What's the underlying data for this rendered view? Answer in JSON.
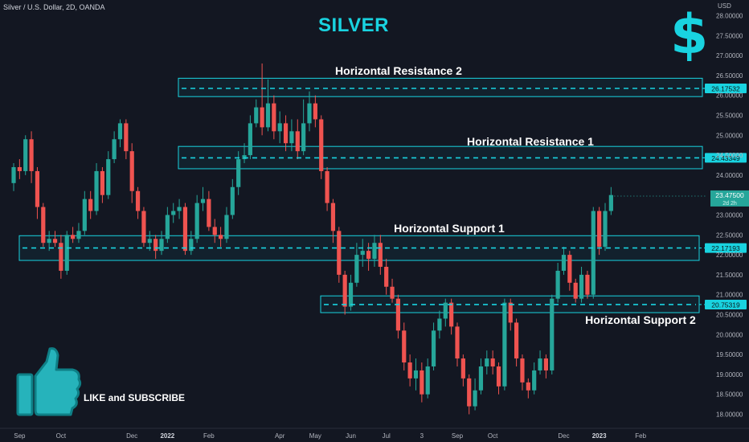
{
  "header": {
    "symbol": "Silver / U.S. Dollar, 2D, OANDA",
    "title": "SILVER",
    "currency": "USD",
    "dollar_glyph": "$"
  },
  "footer": {
    "cta": "LIKE and SUBSCRIBE",
    "thumb_icon": "thumbs-up-icon"
  },
  "colors": {
    "background": "#131722",
    "up": "#26a69a",
    "down": "#ef5350",
    "accent": "#19d3e0",
    "axis_text": "#b2b5be"
  },
  "chart_data": {
    "type": "candlestick",
    "title": "SILVER",
    "price_axis": {
      "ticks": [
        "28.00000",
        "27.50000",
        "27.00000",
        "26.50000",
        "26.00000",
        "25.50000",
        "25.00000",
        "24.50000",
        "24.00000",
        "23.50000",
        "23.00000",
        "22.50000",
        "22.00000",
        "21.50000",
        "21.00000",
        "20.50000",
        "20.00000",
        "19.50000",
        "19.00000",
        "18.50000",
        "18.00000"
      ],
      "ylim": [
        17.8,
        28.1
      ]
    },
    "time_axis": {
      "labels": [
        {
          "text": "Sep",
          "i": 1
        },
        {
          "text": "Oct",
          "i": 8
        },
        {
          "text": "Dec",
          "i": 20
        },
        {
          "text": "2022",
          "i": 26
        },
        {
          "text": "Feb",
          "i": 33
        },
        {
          "text": "Apr",
          "i": 45
        },
        {
          "text": "May",
          "i": 51
        },
        {
          "text": "Jun",
          "i": 57
        },
        {
          "text": "Jul",
          "i": 63
        },
        {
          "text": "3",
          "i": 69
        },
        {
          "text": "Sep",
          "i": 75
        },
        {
          "text": "Oct",
          "i": 81
        },
        {
          "text": "Dec",
          "i": 93
        },
        {
          "text": "2023",
          "i": 99
        },
        {
          "text": "Feb",
          "i": 106
        }
      ],
      "bold": [
        "2022",
        "2023"
      ]
    },
    "candles": [
      [
        23.8,
        24.2,
        24.3,
        23.6
      ],
      [
        24.2,
        24.1,
        24.4,
        23.9
      ],
      [
        24.1,
        24.9,
        25.0,
        24.0
      ],
      [
        24.9,
        24.1,
        25.1,
        23.8
      ],
      [
        24.1,
        23.2,
        24.2,
        22.9
      ],
      [
        23.2,
        22.3,
        23.3,
        22.2
      ],
      [
        22.3,
        22.4,
        22.6,
        22.1
      ],
      [
        22.4,
        22.3,
        22.6,
        22.2
      ],
      [
        22.3,
        21.6,
        22.5,
        21.4
      ],
      [
        21.6,
        22.5,
        22.6,
        21.5
      ],
      [
        22.5,
        22.4,
        22.7,
        22.3
      ],
      [
        22.4,
        22.6,
        22.8,
        22.3
      ],
      [
        22.6,
        23.4,
        23.6,
        22.5
      ],
      [
        23.4,
        23.1,
        23.6,
        22.9
      ],
      [
        23.1,
        24.1,
        24.3,
        23.0
      ],
      [
        24.1,
        23.5,
        24.2,
        23.3
      ],
      [
        23.5,
        24.4,
        24.6,
        23.4
      ],
      [
        24.4,
        24.9,
        25.1,
        24.3
      ],
      [
        24.9,
        25.3,
        25.4,
        24.7
      ],
      [
        25.3,
        24.6,
        25.4,
        24.4
      ],
      [
        24.6,
        23.6,
        24.8,
        23.3
      ],
      [
        23.6,
        23.1,
        23.7,
        22.9
      ],
      [
        23.1,
        22.3,
        23.2,
        22.2
      ],
      [
        22.3,
        22.4,
        22.6,
        22.1
      ],
      [
        22.4,
        22.1,
        22.5,
        21.9
      ],
      [
        22.1,
        22.4,
        22.6,
        22.0
      ],
      [
        22.4,
        23.0,
        23.2,
        22.3
      ],
      [
        23.0,
        23.1,
        23.3,
        22.8
      ],
      [
        23.1,
        23.2,
        23.4,
        22.9
      ],
      [
        23.2,
        22.1,
        23.3,
        22.0
      ],
      [
        22.1,
        22.4,
        22.6,
        22.0
      ],
      [
        22.4,
        23.3,
        23.5,
        22.3
      ],
      [
        23.3,
        23.4,
        23.7,
        23.1
      ],
      [
        23.4,
        22.7,
        23.6,
        22.6
      ],
      [
        22.7,
        22.5,
        22.9,
        22.3
      ],
      [
        22.5,
        22.4,
        22.7,
        22.2
      ],
      [
        22.4,
        23.0,
        23.2,
        22.3
      ],
      [
        23.0,
        23.7,
        23.9,
        22.9
      ],
      [
        23.7,
        24.4,
        24.6,
        23.5
      ],
      [
        24.4,
        24.5,
        24.8,
        24.3
      ],
      [
        24.5,
        25.3,
        25.5,
        24.4
      ],
      [
        25.3,
        25.7,
        25.9,
        25.2
      ],
      [
        25.7,
        25.2,
        26.8,
        25.0
      ],
      [
        25.2,
        25.8,
        26.4,
        25.1
      ],
      [
        25.8,
        25.1,
        26.0,
        24.9
      ],
      [
        25.1,
        25.3,
        25.6,
        24.8
      ],
      [
        25.3,
        24.8,
        25.5,
        24.6
      ],
      [
        24.8,
        25.1,
        25.4,
        24.6
      ],
      [
        25.1,
        24.6,
        25.4,
        24.4
      ],
      [
        24.6,
        25.3,
        25.9,
        24.5
      ],
      [
        25.3,
        25.8,
        26.1,
        25.1
      ],
      [
        25.8,
        25.4,
        26.0,
        25.2
      ],
      [
        25.4,
        24.1,
        25.5,
        23.9
      ],
      [
        24.1,
        23.3,
        24.2,
        23.1
      ],
      [
        23.3,
        22.6,
        23.4,
        22.3
      ],
      [
        22.6,
        21.5,
        22.7,
        21.3
      ],
      [
        21.5,
        20.7,
        21.6,
        20.5
      ],
      [
        20.7,
        21.3,
        21.5,
        20.6
      ],
      [
        21.3,
        22.0,
        22.3,
        21.2
      ],
      [
        22.0,
        22.1,
        22.4,
        21.7
      ],
      [
        22.1,
        21.9,
        22.3,
        21.6
      ],
      [
        21.9,
        22.3,
        22.5,
        21.7
      ],
      [
        22.3,
        21.7,
        22.5,
        21.5
      ],
      [
        21.7,
        21.2,
        21.9,
        21.0
      ],
      [
        21.2,
        20.9,
        21.4,
        20.8
      ],
      [
        20.9,
        20.1,
        21.0,
        19.9
      ],
      [
        20.1,
        19.3,
        20.3,
        19.1
      ],
      [
        19.3,
        18.9,
        19.5,
        18.7
      ],
      [
        18.9,
        19.1,
        19.4,
        18.6
      ],
      [
        19.1,
        18.5,
        19.3,
        18.3
      ],
      [
        18.5,
        19.2,
        19.4,
        18.4
      ],
      [
        19.2,
        20.1,
        20.3,
        19.1
      ],
      [
        20.1,
        20.4,
        20.6,
        19.9
      ],
      [
        20.4,
        20.8,
        20.9,
        20.2
      ],
      [
        20.8,
        20.2,
        20.9,
        20.0
      ],
      [
        20.2,
        19.4,
        20.3,
        19.2
      ],
      [
        19.4,
        18.9,
        19.5,
        18.7
      ],
      [
        18.9,
        18.2,
        19.0,
        18.0
      ],
      [
        18.2,
        18.6,
        18.9,
        18.1
      ],
      [
        18.6,
        19.2,
        19.4,
        18.5
      ],
      [
        19.2,
        19.4,
        19.6,
        19.0
      ],
      [
        19.4,
        19.2,
        19.6,
        19.0
      ],
      [
        19.2,
        18.7,
        19.3,
        18.5
      ],
      [
        18.7,
        20.8,
        20.9,
        18.6
      ],
      [
        20.8,
        20.3,
        20.9,
        20.1
      ],
      [
        20.3,
        19.4,
        20.4,
        19.2
      ],
      [
        19.4,
        18.8,
        19.5,
        18.6
      ],
      [
        18.8,
        18.6,
        18.9,
        18.4
      ],
      [
        18.6,
        19.1,
        19.3,
        18.5
      ],
      [
        19.1,
        19.4,
        19.6,
        19.0
      ],
      [
        19.4,
        19.1,
        19.5,
        18.9
      ],
      [
        19.1,
        20.9,
        21.0,
        19.0
      ],
      [
        20.9,
        21.6,
        21.8,
        20.8
      ],
      [
        21.6,
        22.0,
        22.2,
        21.5
      ],
      [
        22.0,
        21.3,
        22.1,
        21.1
      ],
      [
        21.3,
        20.9,
        21.4,
        20.8
      ],
      [
        20.9,
        21.5,
        21.7,
        20.8
      ],
      [
        21.5,
        21.0,
        21.6,
        20.9
      ],
      [
        21.0,
        23.1,
        23.2,
        20.9
      ],
      [
        23.1,
        22.2,
        23.2,
        22.0
      ],
      [
        22.2,
        23.1,
        23.3,
        22.1
      ],
      [
        23.1,
        23.5,
        23.7,
        23.0
      ]
    ],
    "zones": [
      {
        "label": "Horizontal Resistance 2",
        "low": 25.97,
        "high": 26.43,
        "line": 26.17532,
        "line_label": "26.17532"
      },
      {
        "label": "Horizontal Resistance 1",
        "low": 24.16,
        "high": 24.72,
        "line": 24.43349,
        "line_label": "24.43349"
      },
      {
        "label": "Horizontal Support 1",
        "low": 21.86,
        "high": 22.48,
        "line": 22.17193,
        "line_label": "22.17193"
      },
      {
        "label": "Horizontal Support 2",
        "low": 20.55,
        "high": 20.97,
        "line": 20.75319,
        "line_label": "20.75319"
      }
    ],
    "last_price": {
      "value": 23.475,
      "label": "23.47500",
      "countdown": "2d 2h"
    },
    "grid": false,
    "legend": "none"
  }
}
